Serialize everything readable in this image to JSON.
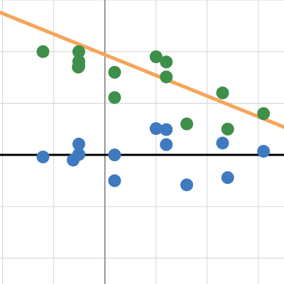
{
  "chart_data": {
    "type": "scatter",
    "xlim": [
      -2.05,
      3.5
    ],
    "ylim": [
      -2.5,
      3.0
    ],
    "grid": true,
    "tick_labels_shown": false,
    "x_tick_step": 1,
    "y_tick_step": 1,
    "colors": {
      "background": "#ffffff",
      "grid": "#d3d3d3",
      "axis": "#7a7a7a",
      "reference_line": "#000000",
      "fit_line": "#f5a55a",
      "green_points": "#3d8f4a",
      "blue_points": "#3f7ac0"
    },
    "series": [
      {
        "color_key": "green_points",
        "points": [
          {
            "x": -1.21,
            "y": 2.0
          },
          {
            "x": -0.51,
            "y": 2.0
          },
          {
            "x": -0.51,
            "y": 1.81
          },
          {
            "x": -0.51,
            "y": 1.81
          },
          {
            "x": -0.51,
            "y": 1.72
          },
          {
            "x": -0.51,
            "y": 1.72
          },
          {
            "x": -0.52,
            "y": 1.7
          },
          {
            "x": 0.19,
            "y": 1.6
          },
          {
            "x": 0.19,
            "y": 1.11
          },
          {
            "x": 1.0,
            "y": 1.9
          },
          {
            "x": 1.2,
            "y": 1.8
          },
          {
            "x": 1.2,
            "y": 1.51
          },
          {
            "x": 1.6,
            "y": 0.6
          },
          {
            "x": 2.3,
            "y": 1.2
          },
          {
            "x": 2.4,
            "y": 0.5
          },
          {
            "x": 3.1,
            "y": 0.8
          }
        ]
      },
      {
        "color_key": "blue_points",
        "points": [
          {
            "x": -1.21,
            "y": -0.04
          },
          {
            "x": -0.51,
            "y": 0.21
          },
          {
            "x": -0.51,
            "y": 0.01
          },
          {
            "x": -0.51,
            "y": 0.01
          },
          {
            "x": -0.51,
            "y": 0.01
          },
          {
            "x": -0.62,
            "y": -0.1
          },
          {
            "x": 0.19,
            "y": 0.0
          },
          {
            "x": 0.19,
            "y": -0.5
          },
          {
            "x": 1.0,
            "y": 0.51
          },
          {
            "x": 1.2,
            "y": 0.49
          },
          {
            "x": 1.2,
            "y": 0.2
          },
          {
            "x": 1.6,
            "y": -0.58
          },
          {
            "x": 2.3,
            "y": 0.23
          },
          {
            "x": 2.4,
            "y": -0.44
          },
          {
            "x": 3.1,
            "y": 0.07
          }
        ]
      }
    ],
    "fit_line": {
      "slope": -0.4,
      "intercept": 1.94,
      "color_key": "fit_line"
    },
    "reference_line": {
      "y": 0,
      "color_key": "reference_line"
    }
  }
}
